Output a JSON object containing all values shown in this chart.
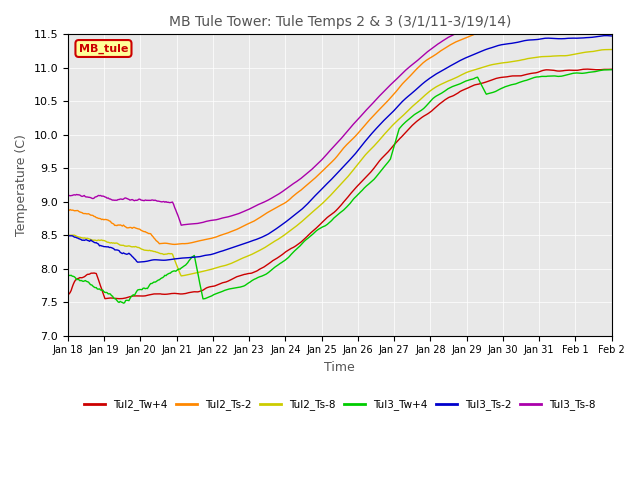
{
  "title": "MB Tule Tower: Tule Temps 2 & 3 (3/1/11-3/19/14)",
  "xlabel": "Time",
  "ylabel": "Temperature (C)",
  "ylim": [
    7.0,
    11.5
  ],
  "xlim": [
    0,
    15
  ],
  "x_tick_labels": [
    "Jan 18",
    "Jan 19",
    "Jan 20",
    "Jan 21",
    "Jan 22",
    "Jan 23",
    "Jan 24",
    "Jan 25",
    "Jan 26",
    "Jan 27",
    "Jan 28",
    "Jan 29",
    "Jan 30",
    "Jan 31",
    "Feb 1",
    "Feb 2"
  ],
  "series_colors": {
    "Tul2_Tw+4": "#cc0000",
    "Tul2_Ts-2": "#ff8800",
    "Tul2_Ts-8": "#cccc00",
    "Tul3_Tw+4": "#00cc00",
    "Tul3_Ts-2": "#0000cc",
    "Tul3_Ts-8": "#aa00aa"
  },
  "annotation_text": "MB_tule",
  "annotation_color": "#cc0000",
  "annotation_bg": "#ffff99",
  "background_color": "#e8e8e8",
  "plot_bg": "#e8e8e8"
}
